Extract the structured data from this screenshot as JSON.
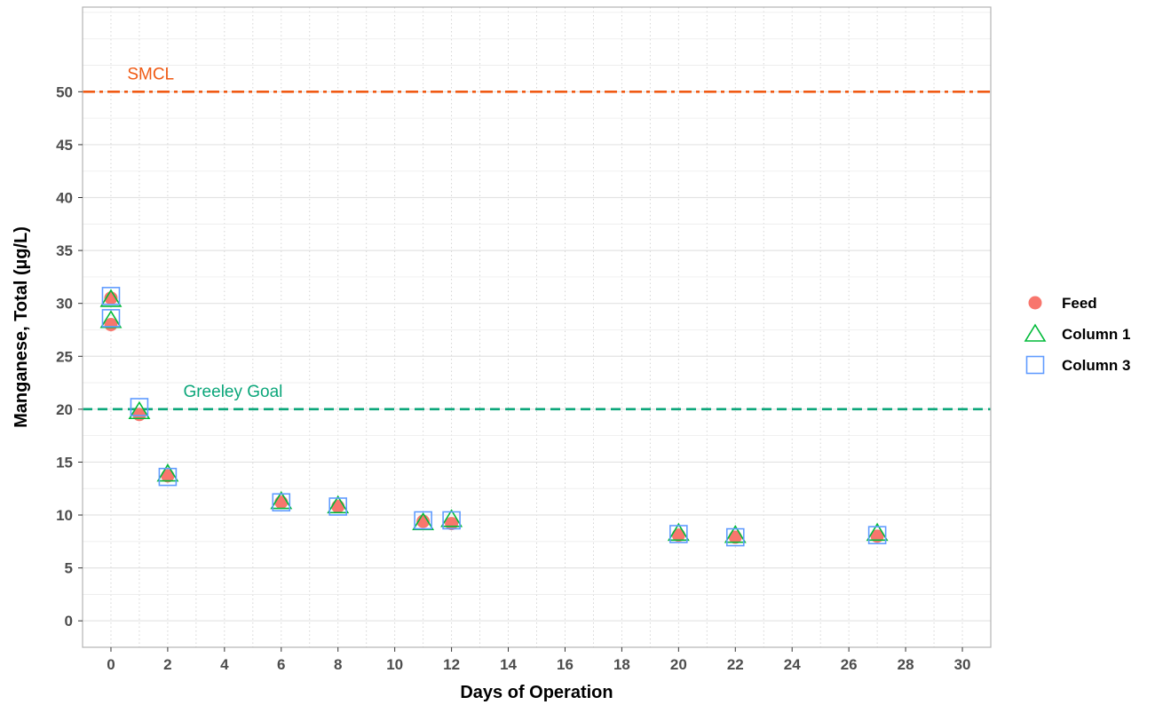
{
  "chart_data": {
    "type": "scatter",
    "xlabel": "Days of Operation",
    "ylabel": "Manganese, Total (µg/L)",
    "xlim": [
      -1,
      31
    ],
    "ylim": [
      -2.5,
      58
    ],
    "x_ticks": [
      0,
      2,
      4,
      6,
      8,
      10,
      12,
      14,
      16,
      18,
      20,
      22,
      24,
      26,
      28,
      30
    ],
    "y_ticks": [
      0,
      5,
      10,
      15,
      20,
      25,
      30,
      35,
      40,
      45,
      50
    ],
    "grid": true,
    "legend_position": "right",
    "series": [
      {
        "name": "Feed",
        "marker": "circle-filled",
        "color": "#F8766D",
        "points": [
          [
            0,
            28.0
          ],
          [
            0,
            30.5
          ],
          [
            1,
            19.5
          ],
          [
            2,
            13.7
          ],
          [
            6,
            11.2
          ],
          [
            8,
            10.8
          ],
          [
            11,
            9.4
          ],
          [
            12,
            9.2
          ],
          [
            20,
            8.1
          ],
          [
            22,
            7.9
          ],
          [
            27,
            8.0
          ]
        ]
      },
      {
        "name": "Column 1",
        "marker": "triangle-open",
        "color": "#00BA38",
        "points": [
          [
            0,
            28.4
          ],
          [
            0,
            30.4
          ],
          [
            1,
            19.8
          ],
          [
            2,
            13.9
          ],
          [
            6,
            11.3
          ],
          [
            8,
            10.9
          ],
          [
            11,
            9.3
          ],
          [
            12,
            9.6
          ],
          [
            20,
            8.3
          ],
          [
            22,
            8.1
          ],
          [
            27,
            8.3
          ]
        ]
      },
      {
        "name": "Column 3",
        "marker": "square-open",
        "color": "#619CFF",
        "points": [
          [
            0,
            28.6
          ],
          [
            0,
            30.7
          ],
          [
            1,
            20.2
          ],
          [
            2,
            13.6
          ],
          [
            6,
            11.2
          ],
          [
            8,
            10.8
          ],
          [
            11,
            9.5
          ],
          [
            12,
            9.5
          ],
          [
            20,
            8.2
          ],
          [
            22,
            7.9
          ],
          [
            27,
            8.1
          ]
        ]
      }
    ],
    "reference_lines": [
      {
        "label": "SMCL",
        "y": 50,
        "style": "dashdot",
        "color": "#F05A14",
        "label_x": 1.4
      },
      {
        "label": "Greeley Goal",
        "y": 20,
        "style": "dashed",
        "color": "#0BA67A",
        "label_x": 4.3
      }
    ]
  }
}
